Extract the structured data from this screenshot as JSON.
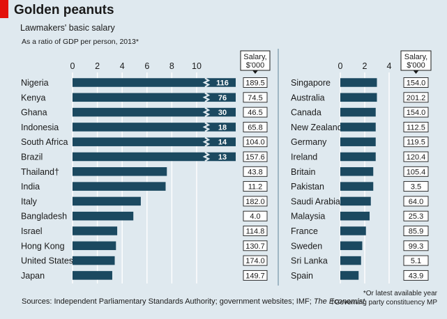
{
  "header": {
    "title": "Golden peanuts",
    "subtitle": "Lawmakers' basic salary",
    "subnote": "As a ratio of GDP per person, 2013*"
  },
  "footer": {
    "sources_prefix": "Sources: Independent Parliamentary Standards Authority; government websites; IMF; ",
    "sources_publication": "The Economist",
    "note_star": "*Or latest available year",
    "note_dagger": "†Governing party constituency MP"
  },
  "colors": {
    "bar": "#1b4960",
    "gridline": "#ffffff",
    "background": "#dfe9ef",
    "accent": "#e3120b"
  },
  "chart_data": [
    {
      "type": "bar",
      "orientation": "horizontal",
      "xlim": [
        0,
        12
      ],
      "ticks": [
        "0",
        "2",
        "4",
        "6",
        "8",
        "10"
      ],
      "salary_header": "Salary, $'000",
      "categories": [
        "Nigeria",
        "Kenya",
        "Ghana",
        "Indonesia",
        "South Africa",
        "Brazil",
        "Thailand†",
        "India",
        "Italy",
        "Bangladesh",
        "Israel",
        "Hong Kong",
        "United States",
        "Japan"
      ],
      "values": [
        116,
        76,
        30,
        18,
        14,
        13,
        7.6,
        7.5,
        5.5,
        4.9,
        3.6,
        3.5,
        3.4,
        3.2
      ],
      "value_labels": [
        "116",
        "76",
        "30",
        "18",
        "14",
        "13",
        "",
        "",
        "",
        "",
        "",
        "",
        "",
        ""
      ],
      "broken": [
        true,
        true,
        true,
        true,
        true,
        true,
        false,
        false,
        false,
        false,
        false,
        false,
        false,
        false
      ],
      "salary": [
        "189.5",
        "74.5",
        "46.5",
        "65.8",
        "104.0",
        "157.6",
        "43.8",
        "11.2",
        "182.0",
        "4.0",
        "114.8",
        "130.7",
        "174.0",
        "149.7"
      ]
    },
    {
      "type": "bar",
      "orientation": "horizontal",
      "xlim": [
        0,
        4
      ],
      "ticks": [
        "0",
        "2",
        "4"
      ],
      "salary_header": "Salary, $'000",
      "categories": [
        "Singapore",
        "Australia",
        "Canada",
        "New Zealand",
        "Germany",
        "Ireland",
        "Britain",
        "Pakistan",
        "Saudi Arabia",
        "Malaysia",
        "France",
        "Sweden",
        "Sri Lanka",
        "Spain"
      ],
      "values": [
        3.0,
        3.0,
        2.9,
        2.9,
        2.9,
        2.9,
        2.7,
        2.7,
        2.5,
        2.4,
        2.1,
        1.8,
        1.7,
        1.5
      ],
      "salary": [
        "154.0",
        "201.2",
        "154.0",
        "112.5",
        "119.5",
        "120.4",
        "105.4",
        "3.5",
        "64.0",
        "25.3",
        "85.9",
        "99.3",
        "5.1",
        "43.9"
      ]
    }
  ]
}
